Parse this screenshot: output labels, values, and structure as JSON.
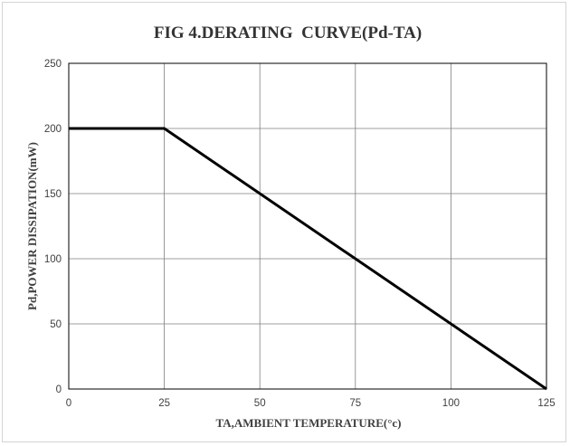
{
  "chart_data": {
    "type": "line",
    "title": "FIG 4.DERATING  CURVE(Pd-TA)",
    "xlabel": "TA,AMBIENT TEMPERATURE(°c)",
    "ylabel": "Pd,POWER DISSIPATION(mW)",
    "xlim": [
      0,
      125
    ],
    "ylim": [
      0,
      250
    ],
    "x_ticks": [
      0,
      25,
      50,
      75,
      100,
      125
    ],
    "y_ticks": [
      0,
      50,
      100,
      150,
      200,
      250
    ],
    "x_tick_labels": [
      "0",
      "25",
      "50",
      "75",
      "100",
      "125"
    ],
    "y_tick_labels": [
      "0",
      "50",
      "100",
      "150",
      "200",
      "250"
    ],
    "grid": true,
    "series": [
      {
        "x": [
          0,
          25,
          125
        ],
        "y": [
          200,
          200,
          0
        ],
        "color": "#000000"
      }
    ]
  }
}
